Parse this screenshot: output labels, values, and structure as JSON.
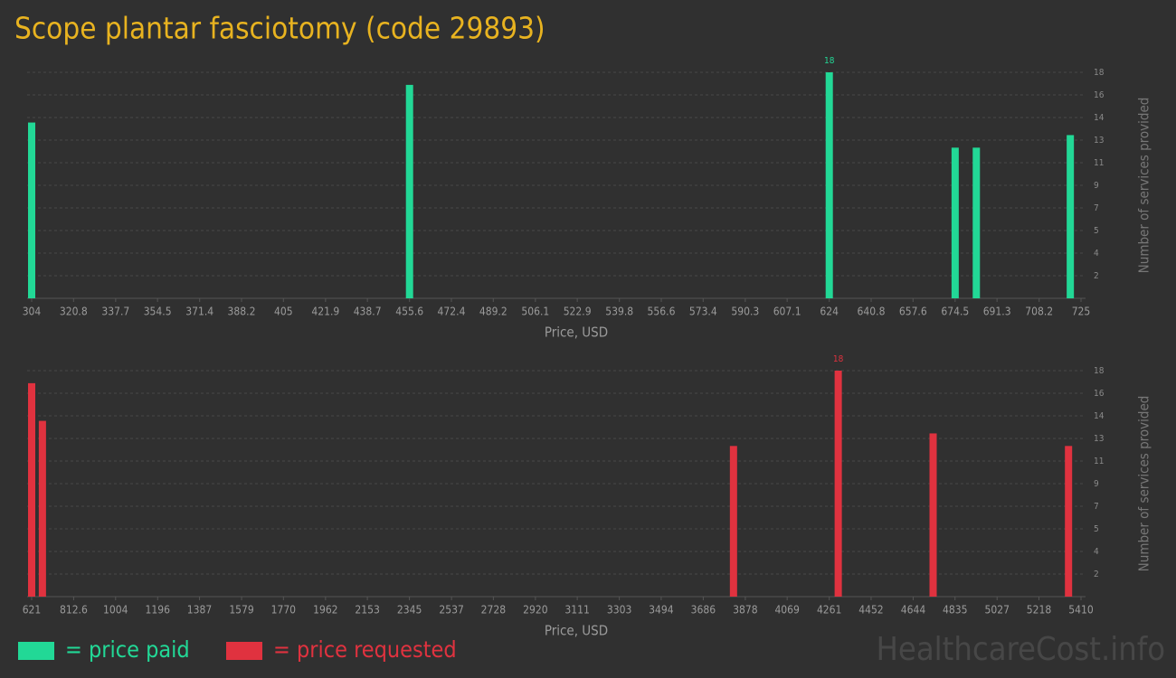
{
  "title": "Scope plantar fasciotomy (code 29893)",
  "chart_data": [
    {
      "type": "bar",
      "x": [
        304,
        455.6,
        624,
        674.5,
        683,
        720.7
      ],
      "values": [
        14,
        17,
        18,
        12,
        12,
        13
      ],
      "color": "#22d896",
      "xlim": [
        304,
        725
      ],
      "xticks": [
        304,
        320.8,
        337.7,
        354.5,
        371.4,
        388.2,
        405,
        421.9,
        438.7,
        455.6,
        472.4,
        489.2,
        506.1,
        522.9,
        539.8,
        556.6,
        573.4,
        590.3,
        607.1,
        624,
        640.8,
        657.6,
        674.5,
        691.3,
        708.2,
        725
      ],
      "ylim": [
        0,
        18
      ],
      "yticks": [
        {
          "value": 1.8,
          "label": "2"
        },
        {
          "value": 3.6,
          "label": "4"
        },
        {
          "value": 5.4,
          "label": "5"
        },
        {
          "value": 7.2,
          "label": "7"
        },
        9,
        {
          "value": 10.8,
          "label": "11"
        },
        {
          "value": 12.6,
          "label": "13"
        },
        {
          "value": 14.4,
          "label": "14"
        },
        {
          "value": 16.2,
          "label": "16"
        },
        18
      ],
      "xlabel": "Price, USD",
      "ylabel": "Number of services provided",
      "grid": true
    },
    {
      "type": "bar",
      "x": [
        621,
        670,
        3824,
        4302,
        4735,
        5353
      ],
      "values": [
        17,
        14,
        12,
        18,
        13,
        12
      ],
      "color": "#e0323f",
      "xlim": [
        621,
        5410
      ],
      "xticks": [
        621,
        812.6,
        1004,
        1196,
        1387,
        1579,
        1770,
        1962,
        2153,
        2345,
        2537,
        2728,
        2920,
        3111,
        3303,
        3494,
        3686,
        3878,
        4069,
        4261,
        4452,
        4644,
        4835,
        5027,
        5218,
        5410
      ],
      "ylim": [
        0,
        18
      ],
      "yticks": [
        {
          "value": 1.8,
          "label": "2"
        },
        {
          "value": 3.6,
          "label": "4"
        },
        {
          "value": 5.4,
          "label": "5"
        },
        {
          "value": 7.2,
          "label": "7"
        },
        9,
        {
          "value": 10.8,
          "label": "11"
        },
        {
          "value": 12.6,
          "label": "13"
        },
        {
          "value": 14.4,
          "label": "14"
        },
        {
          "value": 16.2,
          "label": "16"
        },
        18
      ],
      "xlabel": "Price, USD",
      "ylabel": "Number of services provided",
      "grid": true
    }
  ],
  "legend": [
    {
      "label": "= price paid",
      "color": "#22d896"
    },
    {
      "label": "= price requested",
      "color": "#e0323f"
    }
  ],
  "watermark": "HealthcareCost.info"
}
